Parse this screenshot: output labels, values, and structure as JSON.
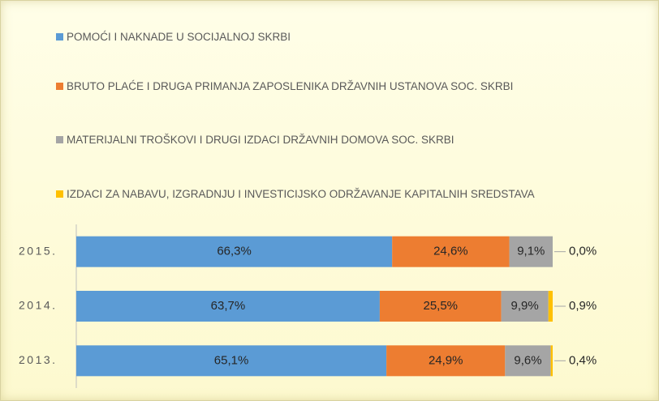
{
  "chart_data": {
    "type": "stacked-barh",
    "categories": [
      "2015.",
      "2014.",
      "2013."
    ],
    "xlim": [
      0,
      100
    ],
    "legend": "top",
    "series": [
      {
        "name": "POMOĆI I NAKNADE U SOCIJALNOJ SKRBI",
        "color": "#5b9bd5",
        "values": [
          66.3,
          63.7,
          65.1
        ],
        "value_labels": [
          "66,3%",
          "63,7%",
          "65,1%"
        ]
      },
      {
        "name": "BRUTO PLAĆE I DRUGA PRIMANJA ZAPOSLENIKA DRŽAVNIH USTANOVA SOC. SKRBI",
        "color": "#ed7d31",
        "values": [
          24.6,
          25.5,
          24.9
        ],
        "value_labels": [
          "24,6%",
          "25,5%",
          "24,9%"
        ]
      },
      {
        "name": "MATERIJALNI TROŠKOVI I DRUGI IZDACI DRŽAVNIH DOMOVA SOC. SKRBI",
        "color": "#a5a5a5",
        "values": [
          9.1,
          9.9,
          9.6
        ],
        "value_labels": [
          "9,1%",
          "9,9%",
          "9,6%"
        ]
      },
      {
        "name": "IZDACI ZA NABAVU, IZGRADNJU I INVESTICIJSKO ODRŽAVANJE KAPITALNIH SREDSTAVA",
        "color": "#ffc000",
        "values": [
          0.0,
          0.9,
          0.4
        ],
        "value_labels": [
          "0,0%",
          "0,9%",
          "0,4%"
        ]
      }
    ]
  }
}
